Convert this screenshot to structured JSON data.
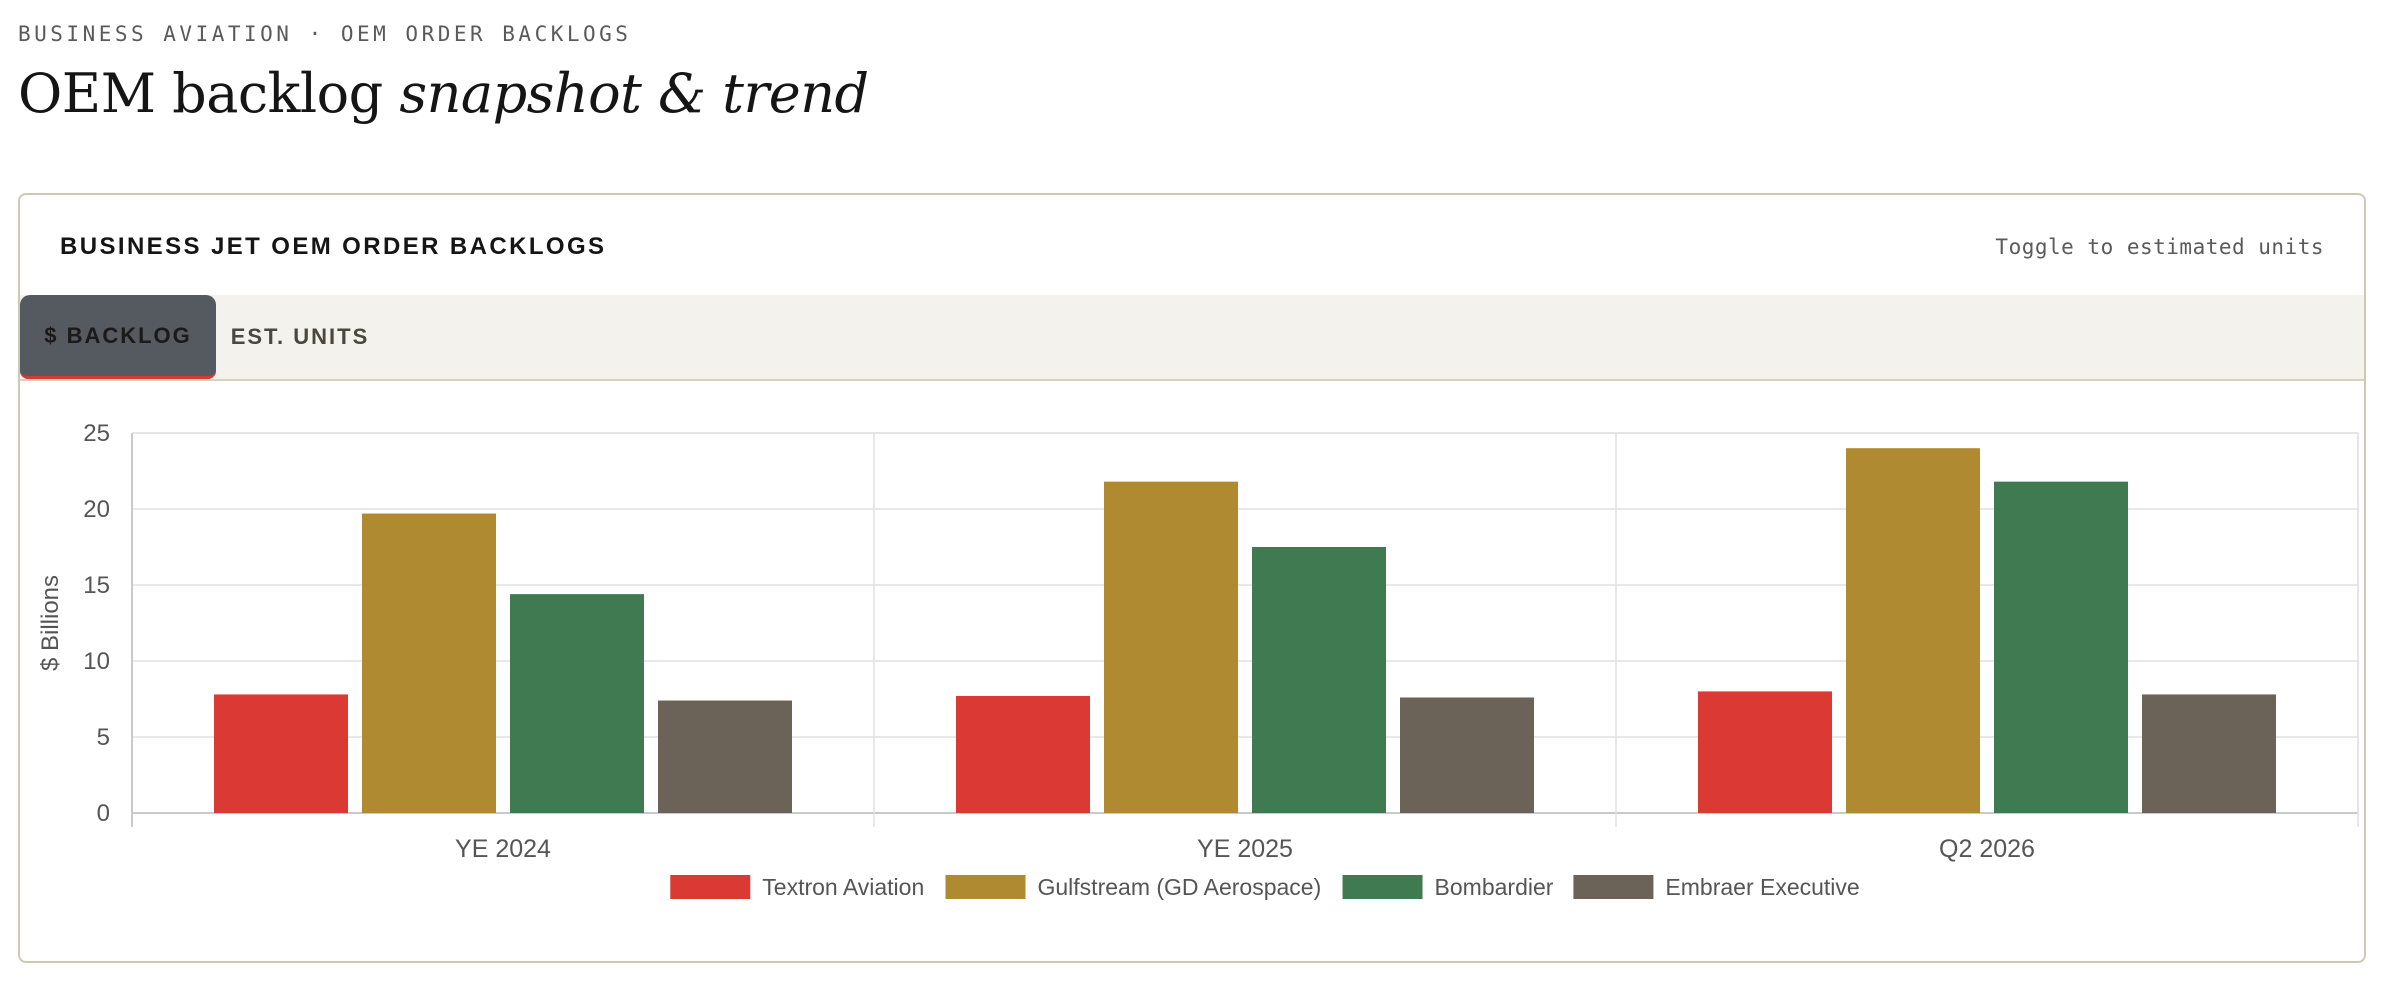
{
  "header": {
    "kicker": "BUSINESS AVIATION · OEM ORDER BACKLOGS",
    "title_main": "OEM backlog ",
    "title_em": "snapshot & trend"
  },
  "card": {
    "title": "BUSINESS JET OEM ORDER BACKLOGS",
    "hint": "Toggle to estimated units",
    "tabs": [
      {
        "label": "$ BACKLOG",
        "active": true
      },
      {
        "label": "EST. UNITS",
        "active": false
      }
    ]
  },
  "chart_data": {
    "type": "bar",
    "categories": [
      "YE 2024",
      "YE 2025",
      "Q2 2026"
    ],
    "series": [
      {
        "name": "Textron Aviation",
        "color": "#db3a34",
        "values": [
          7.8,
          7.7,
          8.0
        ]
      },
      {
        "name": "Gulfstream (GD Aerospace)",
        "color": "#b08a30",
        "values": [
          19.7,
          21.8,
          24.0
        ]
      },
      {
        "name": "Bombardier",
        "color": "#3f7a50",
        "values": [
          14.4,
          17.5,
          21.8
        ]
      },
      {
        "name": "Embraer Executive",
        "color": "#6b6357",
        "values": [
          7.4,
          7.6,
          7.8
        ]
      }
    ],
    "ylabel": "$ Billions",
    "ylim": [
      0,
      25
    ],
    "yticks": [
      0,
      5,
      10,
      15,
      20,
      25
    ],
    "grid": true,
    "legend_position": "bottom"
  }
}
